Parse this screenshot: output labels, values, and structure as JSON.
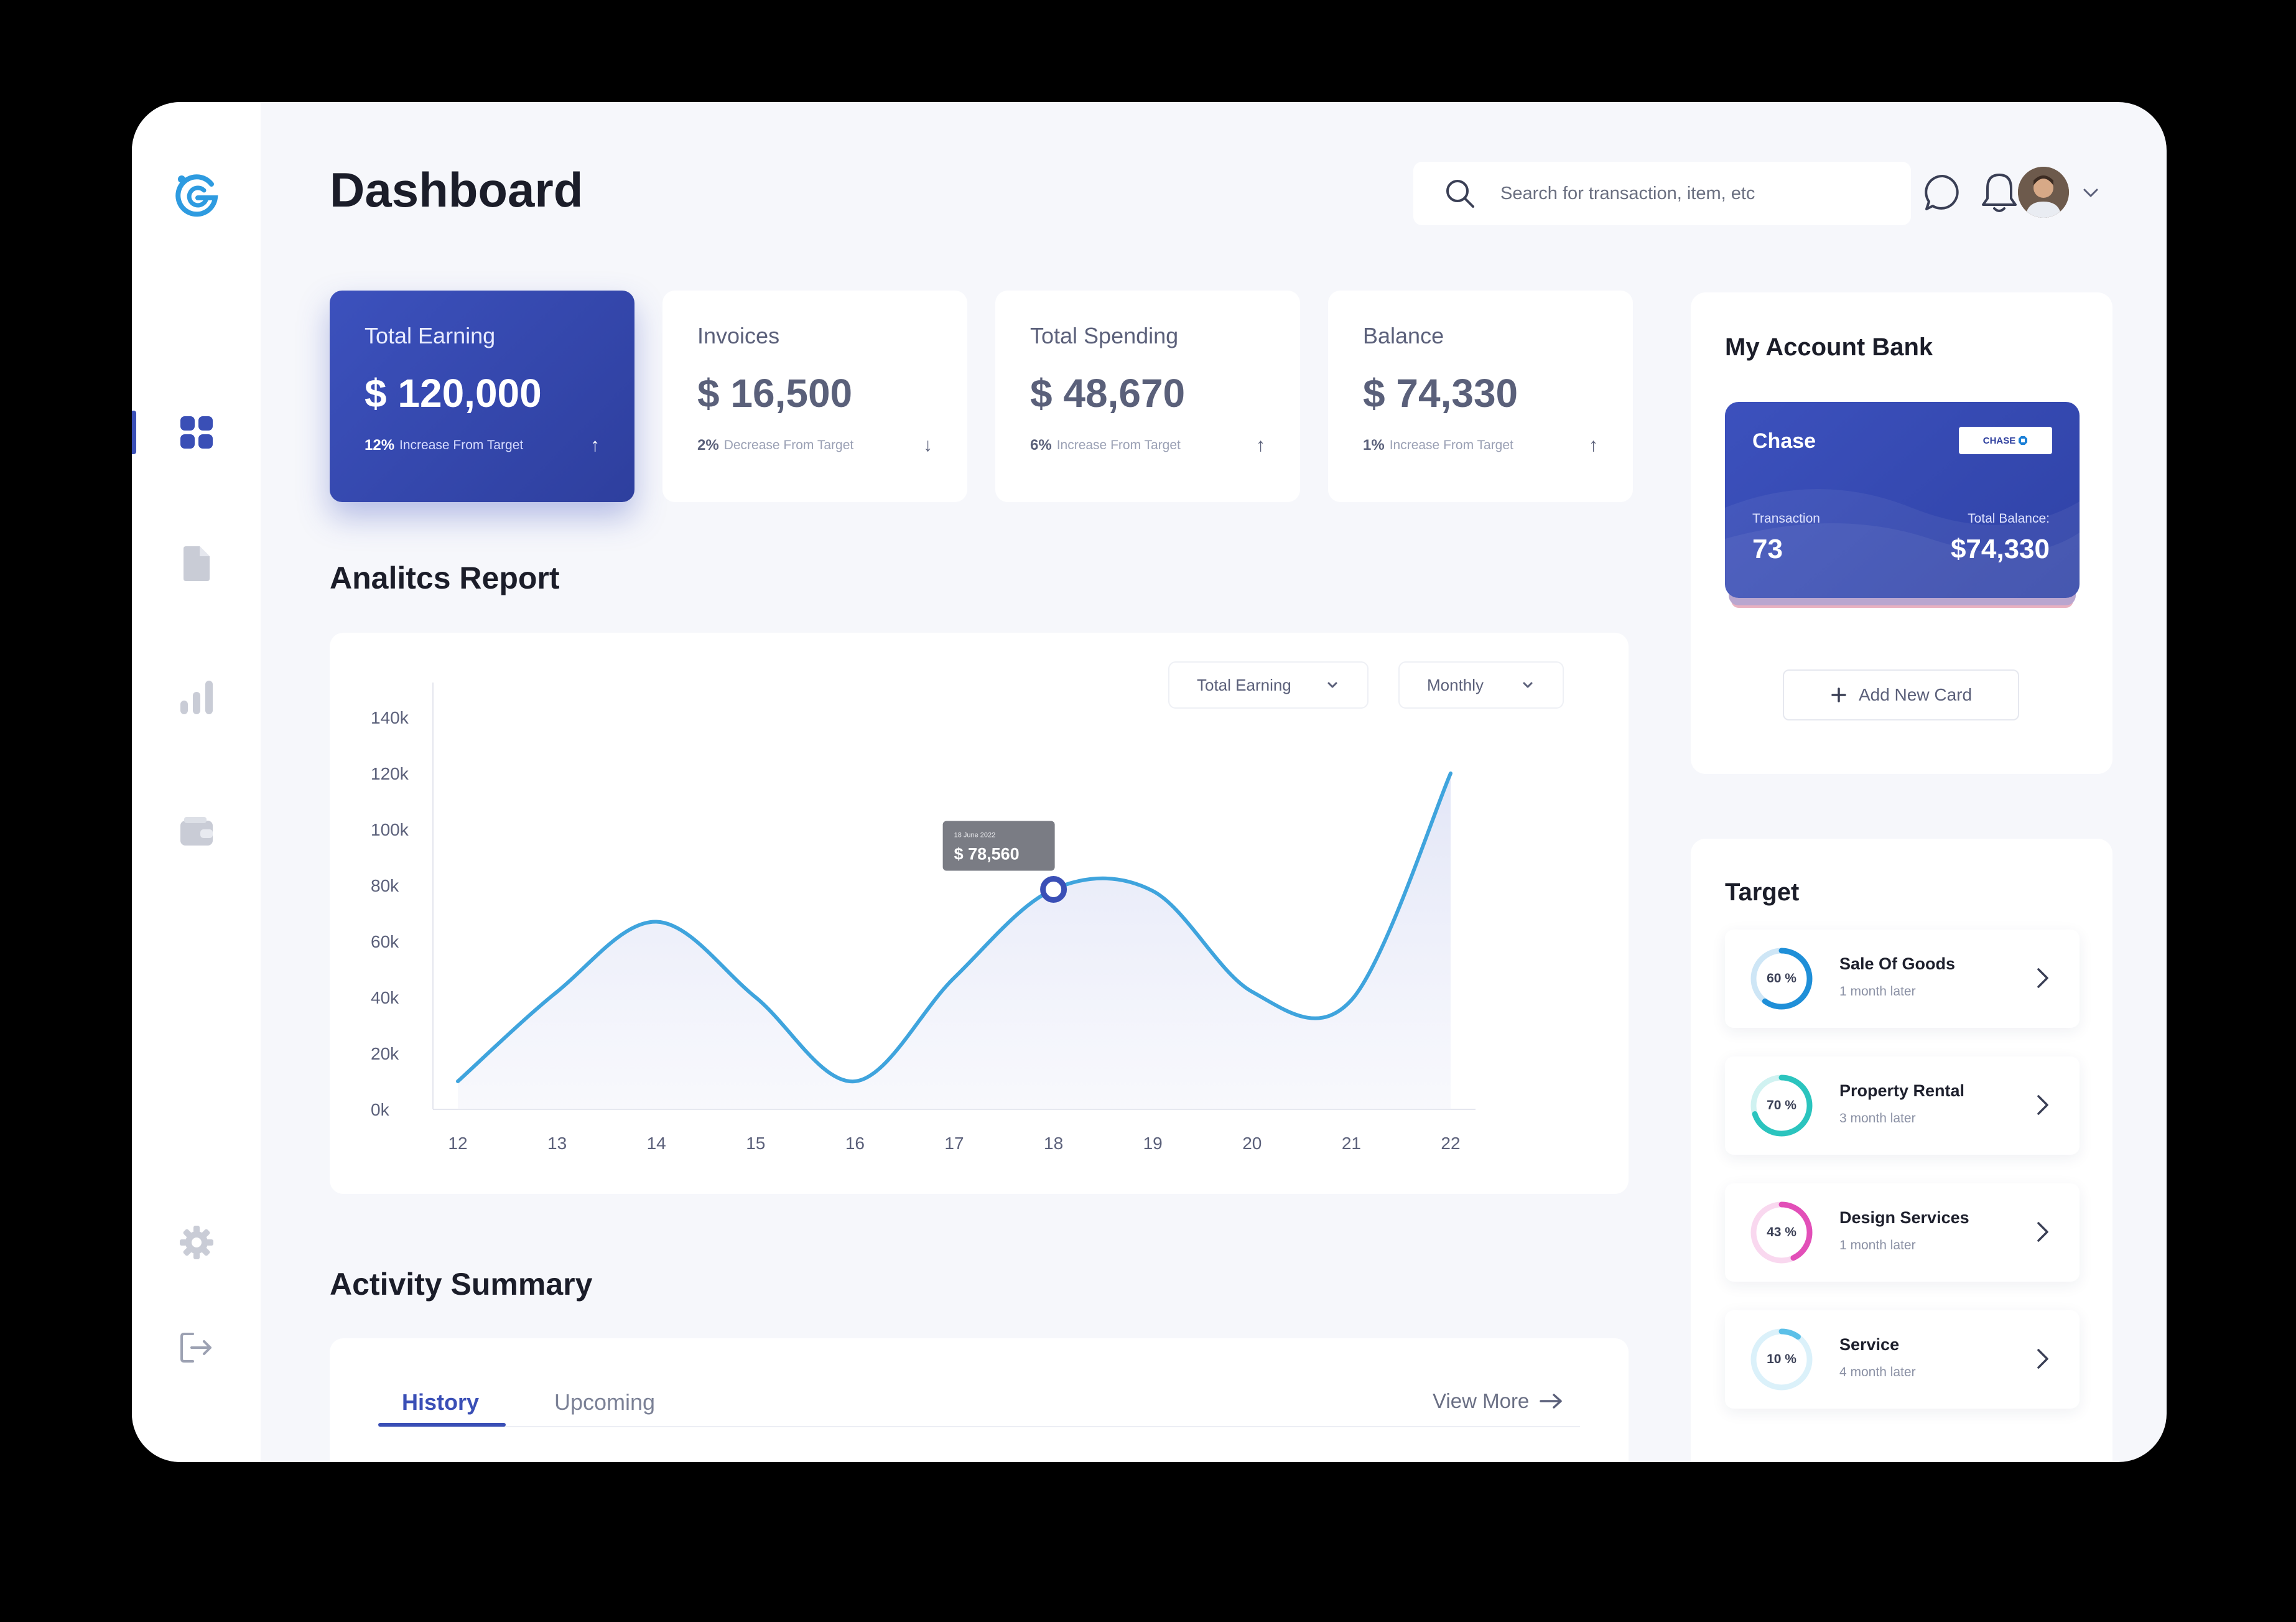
{
  "page_title": "Dashboard",
  "search": {
    "placeholder": "Search for transaction, item, etc"
  },
  "colors": {
    "primary": "#3a4fb6",
    "line": "#3fa4dd",
    "accent_teal": "#2bc4be",
    "accent_pink": "#e24fb8",
    "accent_sky": "#5cc0e8"
  },
  "sidebar": {
    "items": [
      {
        "icon": "dashboard-grid-icon",
        "active": true
      },
      {
        "icon": "document-icon",
        "active": false
      },
      {
        "icon": "bar-chart-icon",
        "active": false
      },
      {
        "icon": "wallet-icon",
        "active": false
      },
      {
        "icon": "gear-icon",
        "active": false
      },
      {
        "icon": "logout-icon",
        "active": false
      }
    ]
  },
  "stats": [
    {
      "label": "Total Earning",
      "value": "$ 120,000",
      "percent": "12%",
      "note": "Increase From Target",
      "arrow": "↑"
    },
    {
      "label": "Invoices",
      "value": "$ 16,500",
      "percent": "2%",
      "note": "Decrease From Target",
      "arrow": "↓"
    },
    {
      "label": "Total Spending",
      "value": "$ 48,670",
      "percent": "6%",
      "note": "Increase From Target",
      "arrow": "↑"
    },
    {
      "label": "Balance",
      "value": "$ 74,330",
      "percent": "1%",
      "note": "Increase From Target",
      "arrow": "↑"
    }
  ],
  "analytics": {
    "title": "Analitcs Report",
    "metric_dropdown": "Total Earning",
    "period_dropdown": "Monthly",
    "tooltip": {
      "date": "18 June 2022",
      "value": "$ 78,560"
    }
  },
  "chart_data": {
    "type": "area",
    "x": [
      12,
      13,
      14,
      15,
      16,
      17,
      18,
      19,
      20,
      21,
      22
    ],
    "y_ticks": [
      "140k",
      "120k",
      "100k",
      "80k",
      "60k",
      "40k",
      "20k",
      "0k"
    ],
    "ylim": [
      0,
      140000
    ],
    "series": [
      {
        "values": [
          10000,
          42000,
          67000,
          40000,
          10000,
          47000,
          78560,
          78000,
          42000,
          39000,
          120000
        ]
      }
    ],
    "highlight": {
      "x": 18,
      "y": 78560
    },
    "grid": false
  },
  "activity": {
    "title": "Activity Summary",
    "tabs": [
      {
        "label": "History",
        "active": true
      },
      {
        "label": "Upcoming",
        "active": false
      }
    ],
    "view_more": "View More"
  },
  "bank": {
    "title": "My Account Bank",
    "card_name": "Chase",
    "logo_text": "CHASE",
    "transaction_label": "Transaction",
    "transaction_value": "73",
    "balance_label": "Total Balance:",
    "balance_value": "$74,330",
    "add_label": "Add New Card"
  },
  "target": {
    "title": "Target",
    "items": [
      {
        "percent": 60,
        "label": "60 %",
        "name": "Sale Of Goods",
        "sub": "1 month later",
        "color": "#1f8fd8"
      },
      {
        "percent": 70,
        "label": "70 %",
        "name": "Property Rental",
        "sub": "3 month later",
        "color": "#2bc4be"
      },
      {
        "percent": 43,
        "label": "43 %",
        "name": "Design Services",
        "sub": "1 month later",
        "color": "#e24fb8"
      },
      {
        "percent": 10,
        "label": "10 %",
        "name": "Service",
        "sub": "4 month later",
        "color": "#5cc0e8"
      }
    ]
  }
}
